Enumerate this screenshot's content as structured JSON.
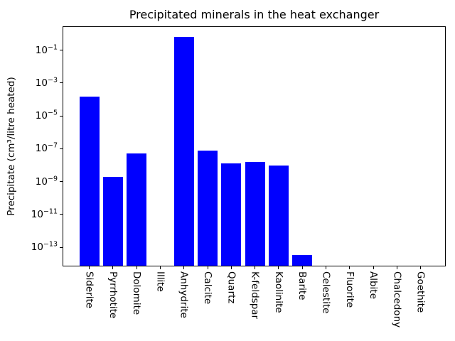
{
  "title": "Precipitated minerals in the heat exchanger",
  "ylabel": "Precipitate (cm³/litre heated)",
  "chart_data": {
    "type": "bar",
    "title": "Precipitated minerals in the heat exchanger",
    "xlabel": "",
    "ylabel": "Precipitate (cm³/litre heated)",
    "yscale": "log",
    "grid": false,
    "legend": false,
    "bar_color": "#0000ff",
    "categories": [
      "Siderite",
      "Pyrrhotite",
      "Dolomite",
      "Illite",
      "Anhydrite",
      "Calcite",
      "Quartz",
      "K-feldspar",
      "Kaolinite",
      "Barite",
      "Celestite",
      "Fluorite",
      "Albite",
      "Chalcedony",
      "Goethite"
    ],
    "values": [
      0.00015,
      2e-09,
      5e-08,
      0,
      0.65,
      7.5e-08,
      1.3e-08,
      1.5e-08,
      9.5e-09,
      3.5e-14,
      0,
      0,
      0,
      0,
      0
    ],
    "ytick_exponents": [
      -1,
      -3,
      -5,
      -7,
      -9,
      -11,
      -13
    ],
    "ylim": [
      7.6e-15,
      2.6
    ]
  }
}
